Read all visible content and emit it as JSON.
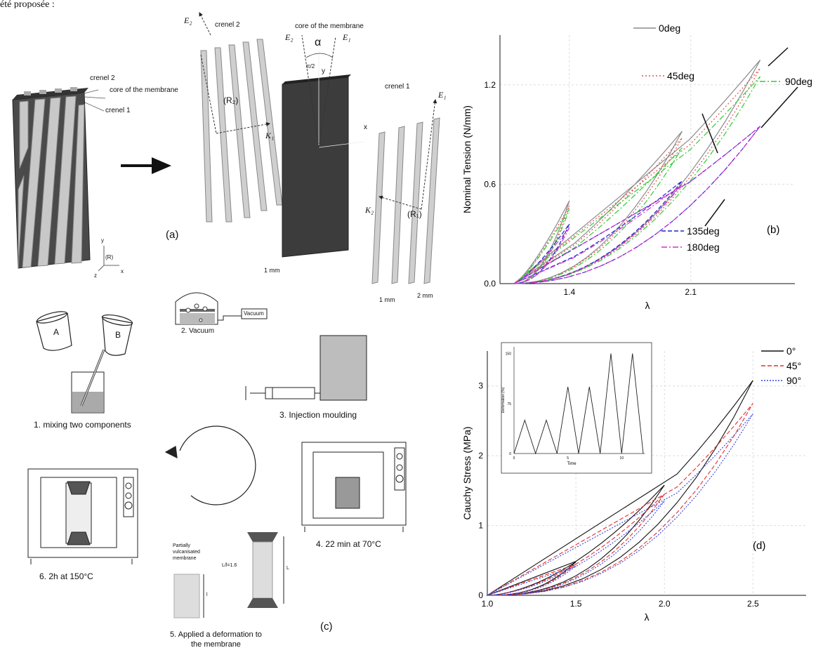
{
  "header_fragment": "été proposée :",
  "panel_a": {
    "caption": "(a)",
    "labels": {
      "crenel2_left": "crenel 2",
      "core_left": "core of the membrane",
      "crenel1_left": "crenel 1",
      "crenel2_mid": "crenel 2",
      "core_mid": "core of the membrane",
      "crenel1_right": "crenel 1",
      "alpha": "α",
      "half_pi": "π/2",
      "y_axis": "y",
      "x_axis": "x",
      "E2_top": "E₂",
      "E2_core": "E₂",
      "E1_core": "E₁",
      "E1_right": "E₁",
      "K1": "K₁",
      "K2": "K₂",
      "R2": "(R₂)",
      "R1": "(R₁)",
      "R": "(R)",
      "frame_x": "x",
      "frame_y": "y",
      "frame_z": "z",
      "thickness": "1 mm",
      "dim1": "1 mm",
      "dim2": "2 mm"
    }
  },
  "panel_c": {
    "caption": "(c)",
    "steps": {
      "s1": "1. mixing two components",
      "s2": "2. Vacuum",
      "s3": "3. Injection moulding",
      "s4": "4. 22 min at 70°C",
      "s5_line1": "5. Applied a deformation to",
      "s5_line2": "the membrane",
      "s6": "6. 2h  at 150°C"
    },
    "labels": {
      "cup_a": "A",
      "cup_b": "B",
      "vacuum": "Vacuum",
      "partial1": "Partially",
      "partial2": "vulcanisated",
      "partial3": "membrane",
      "ratio": "L/l=1.6",
      "l": "l",
      "L": "L"
    }
  },
  "chart_data": [
    {
      "panel": "(b)",
      "type": "line",
      "xlabel": "λ",
      "ylabel": "Nominal Tension  (N/mm)",
      "x_ticks": [
        "1.4",
        "2.1"
      ],
      "y_ticks": [
        "0.0",
        "0.6",
        "1.2"
      ],
      "xlim": [
        1.0,
        2.7
      ],
      "ylim": [
        0.0,
        1.5
      ],
      "cycle_peaks": [
        1.4,
        2.05,
        2.5
      ],
      "series": [
        {
          "name": "0deg",
          "color": "#8c8c8c",
          "dash": "",
          "peaks": [
            0.5,
            0.92,
            1.35
          ]
        },
        {
          "name": "45deg",
          "color": "#e05050",
          "dash": "2,3",
          "peaks": [
            0.47,
            0.88,
            1.3
          ]
        },
        {
          "name": "90deg",
          "color": "#33cc33",
          "dash": "8,3,2,3",
          "peaks": [
            0.45,
            0.82,
            1.25
          ]
        },
        {
          "name": "135deg",
          "color": "#2222cc",
          "dash": "6,3",
          "peaks": [
            0.36,
            0.62,
            0.95
          ]
        },
        {
          "name": "180deg",
          "color": "#cc33cc",
          "dash": "8,3,2,3",
          "peaks": [
            0.34,
            0.6,
            0.95
          ]
        }
      ]
    },
    {
      "panel": "(d)",
      "type": "line",
      "xlabel": "λ",
      "ylabel": "Cauchy Stress (MPa)",
      "x_ticks": [
        "1.0",
        "1.5",
        "2.0",
        "2.5"
      ],
      "y_ticks": [
        "0",
        "1",
        "2",
        "3"
      ],
      "xlim": [
        1.0,
        2.8
      ],
      "ylim": [
        0,
        3.5
      ],
      "cycle_peaks": [
        1.5,
        2.0,
        2.5
      ],
      "series": [
        {
          "name": "0°",
          "color": "#111111",
          "dash": "",
          "peaks": [
            0.48,
            1.58,
            3.08
          ]
        },
        {
          "name": "45°",
          "color": "#e03030",
          "dash": "6,3",
          "peaks": [
            0.45,
            1.45,
            2.75
          ]
        },
        {
          "name": "90°",
          "color": "#3344dd",
          "dash": "2,2",
          "peaks": [
            0.42,
            1.35,
            2.6
          ]
        }
      ],
      "inset": {
        "xlabel": "Time",
        "ylabel": "Deformation (%)",
        "x_ticks": [
          "0",
          "5",
          "10"
        ],
        "y_ticks": [
          "0",
          "75",
          "150"
        ],
        "ylim": [
          0,
          160
        ],
        "profile_t": [
          0,
          1,
          2,
          3,
          4,
          5,
          6,
          7,
          8,
          9,
          10,
          11,
          12
        ],
        "profile_v": [
          0,
          50,
          0,
          50,
          0,
          100,
          0,
          100,
          0,
          150,
          0,
          150,
          0
        ]
      }
    }
  ]
}
